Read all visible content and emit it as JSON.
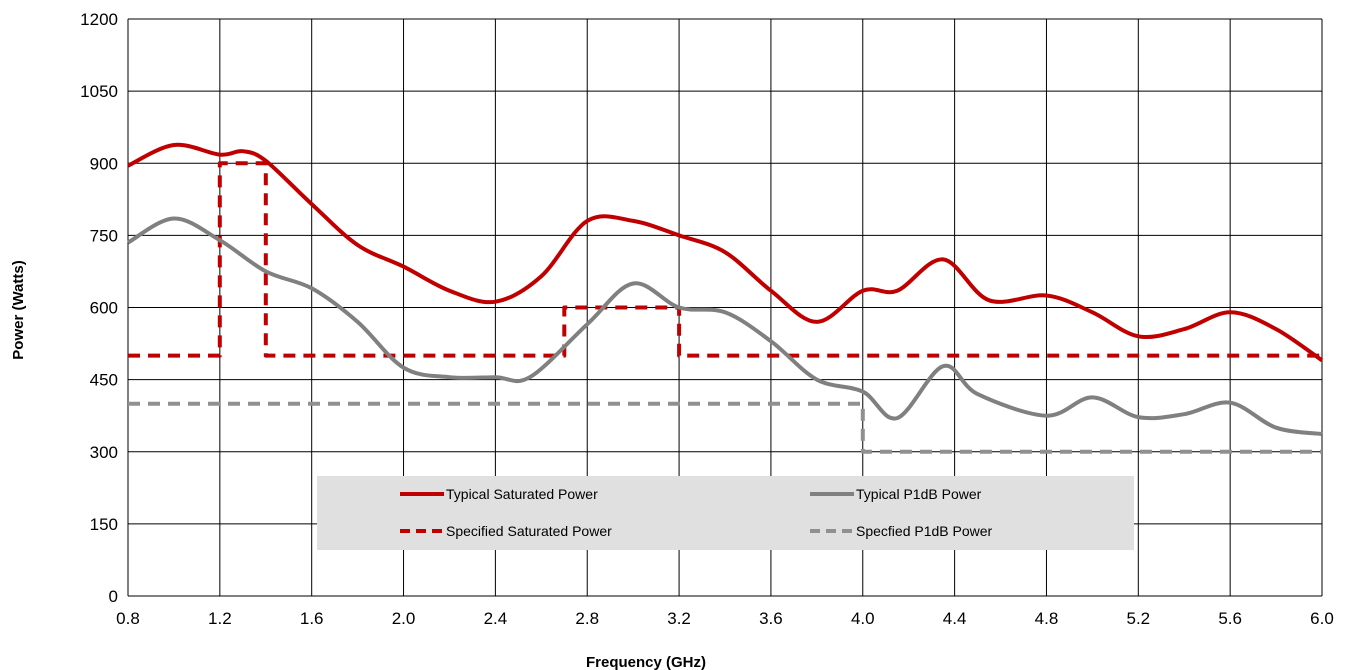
{
  "chart_data": {
    "type": "line",
    "title": "",
    "xlabel": "Frequency (GHz)",
    "ylabel": "Power (Watts)",
    "xlim": [
      0.8,
      6.0
    ],
    "ylim": [
      0,
      1200
    ],
    "x_ticks": [
      "0.8",
      "1.2",
      "1.6",
      "2.0",
      "2.4",
      "2.8",
      "3.2",
      "3.6",
      "4.0",
      "4.4",
      "4.8",
      "5.2",
      "5.6",
      "6.0"
    ],
    "y_ticks": [
      "0",
      "150",
      "300",
      "450",
      "600",
      "750",
      "900",
      "1050",
      "1200"
    ],
    "grid": true,
    "legend_position": "inside-bottom-center",
    "series": [
      {
        "name": "Typical Saturated Power",
        "color": "#c00000",
        "style": "solid",
        "points": [
          [
            0.8,
            895
          ],
          [
            1.0,
            938
          ],
          [
            1.2,
            918
          ],
          [
            1.3,
            925
          ],
          [
            1.4,
            905
          ],
          [
            1.6,
            815
          ],
          [
            1.8,
            730
          ],
          [
            2.0,
            685
          ],
          [
            2.2,
            635
          ],
          [
            2.4,
            612
          ],
          [
            2.6,
            665
          ],
          [
            2.8,
            780
          ],
          [
            3.0,
            780
          ],
          [
            3.2,
            750
          ],
          [
            3.4,
            715
          ],
          [
            3.6,
            635
          ],
          [
            3.8,
            570
          ],
          [
            4.0,
            635
          ],
          [
            4.15,
            635
          ],
          [
            4.35,
            700
          ],
          [
            4.55,
            615
          ],
          [
            4.8,
            625
          ],
          [
            5.0,
            590
          ],
          [
            5.2,
            540
          ],
          [
            5.4,
            555
          ],
          [
            5.6,
            590
          ],
          [
            5.8,
            555
          ],
          [
            6.0,
            490
          ]
        ]
      },
      {
        "name": "Typical P1dB Power",
        "color": "#808080",
        "style": "solid",
        "points": [
          [
            0.8,
            735
          ],
          [
            1.0,
            785
          ],
          [
            1.2,
            740
          ],
          [
            1.4,
            675
          ],
          [
            1.6,
            640
          ],
          [
            1.8,
            570
          ],
          [
            2.0,
            475
          ],
          [
            2.2,
            455
          ],
          [
            2.4,
            455
          ],
          [
            2.55,
            455
          ],
          [
            2.8,
            565
          ],
          [
            3.0,
            650
          ],
          [
            3.2,
            600
          ],
          [
            3.4,
            590
          ],
          [
            3.6,
            530
          ],
          [
            3.8,
            450
          ],
          [
            4.0,
            425
          ],
          [
            4.15,
            370
          ],
          [
            4.35,
            478
          ],
          [
            4.5,
            420
          ],
          [
            4.8,
            375
          ],
          [
            5.0,
            413
          ],
          [
            5.2,
            372
          ],
          [
            5.4,
            378
          ],
          [
            5.6,
            402
          ],
          [
            5.8,
            350
          ],
          [
            6.0,
            337
          ]
        ]
      },
      {
        "name": "Specified Saturated Power",
        "color": "#c00000",
        "style": "dashed",
        "points": [
          [
            0.8,
            500
          ],
          [
            1.2,
            500
          ],
          [
            1.2,
            900
          ],
          [
            1.4,
            900
          ],
          [
            1.4,
            500
          ],
          [
            2.7,
            500
          ],
          [
            2.7,
            600
          ],
          [
            3.2,
            600
          ],
          [
            3.2,
            500
          ],
          [
            6.0,
            500
          ]
        ]
      },
      {
        "name": "Specfied P1dB Power",
        "color": "#909090",
        "style": "dashed",
        "points": [
          [
            0.8,
            400
          ],
          [
            4.0,
            400
          ],
          [
            4.0,
            300
          ],
          [
            6.0,
            300
          ]
        ]
      }
    ]
  },
  "legend": {
    "items": [
      {
        "label": "Typical Saturated Power",
        "color": "#c00000",
        "style": "solid"
      },
      {
        "label": "Typical P1dB Power",
        "color": "#808080",
        "style": "solid"
      },
      {
        "label": "Specified Saturated Power",
        "color": "#c00000",
        "style": "dashed"
      },
      {
        "label": "Specfied P1dB Power",
        "color": "#909090",
        "style": "dashed"
      }
    ],
    "background": "#e0e0e0"
  }
}
